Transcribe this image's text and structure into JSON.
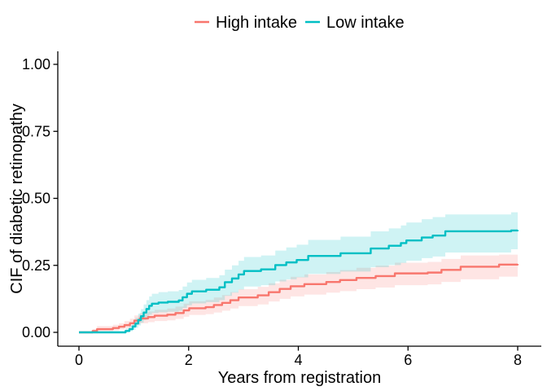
{
  "figure": {
    "background": "#ffffff",
    "text_color": "#000000",
    "axis_color": "#000000"
  },
  "legend": {
    "position": "top-center",
    "items": [
      {
        "label": "High intake",
        "color": "#F8766D"
      },
      {
        "label": "Low intake",
        "color": "#00BFC4"
      }
    ]
  },
  "chart_data": {
    "type": "line",
    "subtype": "step-cumulative-incidence-with-confidence-bands",
    "title": "",
    "xlabel": "Years from registration",
    "ylabel": "CIF of diabetic retinopathy",
    "xlim": [
      0,
      8
    ],
    "ylim": [
      0,
      1
    ],
    "xticks": [
      0,
      2,
      4,
      6,
      8
    ],
    "xtick_labels": [
      "0",
      "2",
      "4",
      "6",
      "8"
    ],
    "yticks": [
      0,
      0.25,
      0.5,
      0.75,
      1
    ],
    "ytick_labels": [
      "0.00",
      "0.25",
      "0.50",
      "0.75",
      "1.00"
    ],
    "grid": false,
    "legend_position": "top",
    "band_opacity": 0.19,
    "series": [
      {
        "name": "High intake",
        "color": "#F8766D",
        "points_format": [
          "years",
          "estimate",
          "lower_ci",
          "upper_ci"
        ],
        "points": [
          [
            0,
            0,
            0,
            0
          ],
          [
            0.25,
            0.005,
            0.001,
            0.012
          ],
          [
            0.33,
            0.012,
            0.005,
            0.023
          ],
          [
            0.62,
            0.016,
            0.007,
            0.028
          ],
          [
            0.73,
            0.021,
            0.011,
            0.034
          ],
          [
            0.83,
            0.027,
            0.015,
            0.042
          ],
          [
            0.93,
            0.034,
            0.02,
            0.051
          ],
          [
            1.01,
            0.044,
            0.028,
            0.063
          ],
          [
            1.11,
            0.052,
            0.034,
            0.072
          ],
          [
            1.26,
            0.057,
            0.038,
            0.078
          ],
          [
            1.38,
            0.062,
            0.042,
            0.084
          ],
          [
            1.61,
            0.066,
            0.045,
            0.089
          ],
          [
            1.76,
            0.072,
            0.05,
            0.096
          ],
          [
            1.91,
            0.082,
            0.058,
            0.107
          ],
          [
            2.01,
            0.09,
            0.065,
            0.116
          ],
          [
            2.31,
            0.094,
            0.068,
            0.121
          ],
          [
            2.46,
            0.102,
            0.074,
            0.13
          ],
          [
            2.61,
            0.11,
            0.081,
            0.139
          ],
          [
            2.76,
            0.12,
            0.089,
            0.15
          ],
          [
            2.91,
            0.13,
            0.098,
            0.161
          ],
          [
            3.26,
            0.138,
            0.104,
            0.17
          ],
          [
            3.46,
            0.15,
            0.115,
            0.183
          ],
          [
            3.66,
            0.162,
            0.125,
            0.196
          ],
          [
            3.86,
            0.172,
            0.134,
            0.207
          ],
          [
            4.11,
            0.18,
            0.141,
            0.216
          ],
          [
            4.51,
            0.188,
            0.148,
            0.225
          ],
          [
            4.76,
            0.195,
            0.154,
            0.232
          ],
          [
            5.06,
            0.203,
            0.161,
            0.241
          ],
          [
            5.41,
            0.21,
            0.167,
            0.249
          ],
          [
            5.76,
            0.22,
            0.176,
            0.26
          ],
          [
            6.36,
            0.223,
            0.179,
            0.263
          ],
          [
            6.61,
            0.233,
            0.188,
            0.274
          ],
          [
            6.96,
            0.245,
            0.198,
            0.287
          ],
          [
            7.66,
            0.253,
            0.208,
            0.29
          ],
          [
            8,
            0.255,
            0.213,
            0.283
          ]
        ]
      },
      {
        "name": "Low intake",
        "color": "#00BFC4",
        "points_format": [
          "years",
          "estimate",
          "lower_ci",
          "upper_ci"
        ],
        "points": [
          [
            0,
            0,
            0,
            0
          ],
          [
            0.55,
            0,
            0,
            0.004
          ],
          [
            0.85,
            0.005,
            0.001,
            0.014
          ],
          [
            0.92,
            0.012,
            0.004,
            0.026
          ],
          [
            0.98,
            0.022,
            0.01,
            0.04
          ],
          [
            1.03,
            0.033,
            0.017,
            0.054
          ],
          [
            1.08,
            0.046,
            0.026,
            0.07
          ],
          [
            1.13,
            0.06,
            0.036,
            0.087
          ],
          [
            1.18,
            0.074,
            0.046,
            0.104
          ],
          [
            1.23,
            0.087,
            0.056,
            0.12
          ],
          [
            1.28,
            0.099,
            0.066,
            0.134
          ],
          [
            1.33,
            0.107,
            0.072,
            0.144
          ],
          [
            1.45,
            0.111,
            0.075,
            0.15
          ],
          [
            1.62,
            0.114,
            0.077,
            0.153
          ],
          [
            1.82,
            0.119,
            0.081,
            0.158
          ],
          [
            1.89,
            0.131,
            0.091,
            0.171
          ],
          [
            1.97,
            0.144,
            0.101,
            0.186
          ],
          [
            2.06,
            0.153,
            0.108,
            0.196
          ],
          [
            2.32,
            0.159,
            0.113,
            0.203
          ],
          [
            2.56,
            0.168,
            0.12,
            0.213
          ],
          [
            2.66,
            0.187,
            0.136,
            0.234
          ],
          [
            2.79,
            0.201,
            0.148,
            0.25
          ],
          [
            2.91,
            0.216,
            0.16,
            0.267
          ],
          [
            3.01,
            0.229,
            0.171,
            0.281
          ],
          [
            3.32,
            0.235,
            0.176,
            0.287
          ],
          [
            3.58,
            0.251,
            0.19,
            0.305
          ],
          [
            3.78,
            0.261,
            0.198,
            0.317
          ],
          [
            3.97,
            0.27,
            0.205,
            0.327
          ],
          [
            4.18,
            0.285,
            0.218,
            0.345
          ],
          [
            4.77,
            0.295,
            0.227,
            0.357
          ],
          [
            5.32,
            0.313,
            0.243,
            0.377
          ],
          [
            5.65,
            0.323,
            0.251,
            0.388
          ],
          [
            5.87,
            0.333,
            0.259,
            0.399
          ],
          [
            5.97,
            0.343,
            0.267,
            0.41
          ],
          [
            6.25,
            0.354,
            0.277,
            0.422
          ],
          [
            6.45,
            0.361,
            0.283,
            0.43
          ],
          [
            6.68,
            0.377,
            0.298,
            0.44
          ],
          [
            7.88,
            0.38,
            0.31,
            0.448
          ],
          [
            8,
            0.382,
            0.313,
            0.45
          ]
        ]
      }
    ]
  }
}
